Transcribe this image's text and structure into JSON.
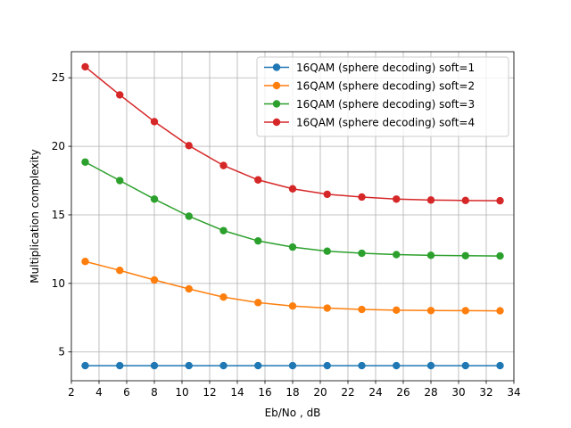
{
  "chart_data": {
    "type": "line",
    "title": "",
    "xlabel": "Eb/No , dB",
    "ylabel": "Multiplication complexity",
    "xlim": [
      2,
      34
    ],
    "ylim": [
      2.9,
      26.9
    ],
    "xticks": [
      2,
      4,
      6,
      8,
      10,
      12,
      14,
      16,
      18,
      20,
      22,
      24,
      26,
      28,
      30,
      32,
      34
    ],
    "yticks": [
      5,
      10,
      15,
      20,
      25
    ],
    "grid": true,
    "legend_position": "top-right",
    "x": [
      3,
      5.5,
      8,
      10.5,
      13,
      15.5,
      18,
      20.5,
      23,
      25.5,
      28,
      30.5,
      33
    ],
    "series": [
      {
        "name": "16QAM (sphere decoding) soft=1",
        "color": "#1f77b4",
        "values": [
          4,
          4,
          4,
          4,
          4,
          4,
          4,
          4,
          4,
          4,
          4,
          4,
          4
        ]
      },
      {
        "name": "16QAM (sphere decoding) soft=2",
        "color": "#ff7f0e",
        "values": [
          11.6,
          10.95,
          10.25,
          9.6,
          9.0,
          8.6,
          8.35,
          8.2,
          8.1,
          8.05,
          8.02,
          8.01,
          8.0
        ]
      },
      {
        "name": "16QAM (sphere decoding) soft=3",
        "color": "#2ca02c",
        "values": [
          18.85,
          17.5,
          16.15,
          14.9,
          13.85,
          13.1,
          12.65,
          12.35,
          12.2,
          12.1,
          12.05,
          12.02,
          12.0
        ]
      },
      {
        "name": "16QAM (sphere decoding) soft=4",
        "color": "#d62728",
        "values": [
          25.8,
          23.75,
          21.8,
          20.05,
          18.6,
          17.55,
          16.9,
          16.5,
          16.3,
          16.15,
          16.08,
          16.05,
          16.03
        ]
      }
    ]
  }
}
